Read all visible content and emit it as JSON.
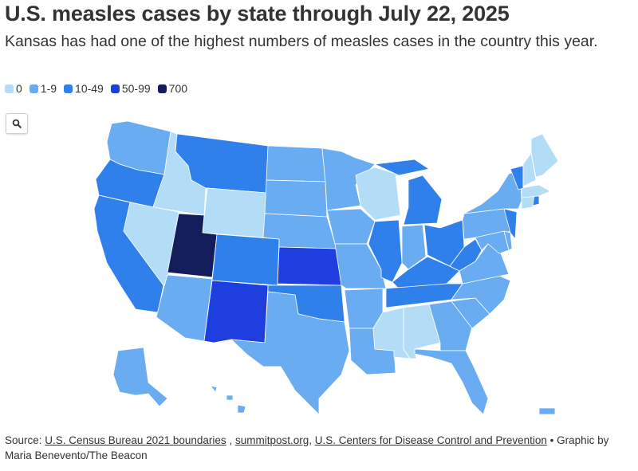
{
  "title": "U.S. measles cases by state through July 22, 2025",
  "subtitle": "Kansas has had one of the highest numbers of measles cases in the country this year.",
  "legend": [
    {
      "label": "0",
      "color": "#b3dcf7"
    },
    {
      "label": "1-9",
      "color": "#6aacf1"
    },
    {
      "label": "10-49",
      "color": "#2f80eb"
    },
    {
      "label": "50-99",
      "color": "#1f3ee0"
    },
    {
      "label": "700",
      "color": "#131d5a"
    }
  ],
  "search_icon": "magnifier-icon",
  "states": {
    "WA": "1-9",
    "OR": "10-49",
    "CA": "10-49",
    "ID": "0",
    "NV": "0",
    "MT": "10-49",
    "WY": "0",
    "UT": "700",
    "AZ": "1-9",
    "CO": "10-49",
    "NM": "50-99",
    "ND": "1-9",
    "SD": "1-9",
    "NE": "1-9",
    "KS": "50-99",
    "OK": "10-49",
    "TX": "1-9",
    "MN": "1-9",
    "IA": "1-9",
    "MO": "1-9",
    "AR": "1-9",
    "LA": "1-9",
    "WI": "0",
    "IL": "10-49",
    "MI": "10-49",
    "IN": "1-9",
    "OH": "10-49",
    "KY": "10-49",
    "TN": "10-49",
    "MS": "0",
    "AL": "0",
    "GA": "1-9",
    "FL": "1-9",
    "SC": "1-9",
    "NC": "1-9",
    "VA": "1-9",
    "WV": "10-49",
    "PA": "1-9",
    "NY": "1-9",
    "VT": "10-49",
    "NH": "0",
    "ME": "0",
    "MA": "0",
    "RI": "10-49",
    "CT": "0",
    "NJ": "10-49",
    "DE": "1-9",
    "MD": "1-9",
    "AK": "1-9",
    "HI": "1-9",
    "PR": "1-9"
  },
  "source": {
    "prefix": "Source: ",
    "link1": "U.S. Census Bureau 2021 boundaries",
    "sep1": " , ",
    "link2": "summitpost.org",
    "sep2": ", ",
    "link3": "U.S. Centers for Disease Control and Prevention",
    "suffix": " • Graphic by Maria Benevento/The Beacon"
  }
}
